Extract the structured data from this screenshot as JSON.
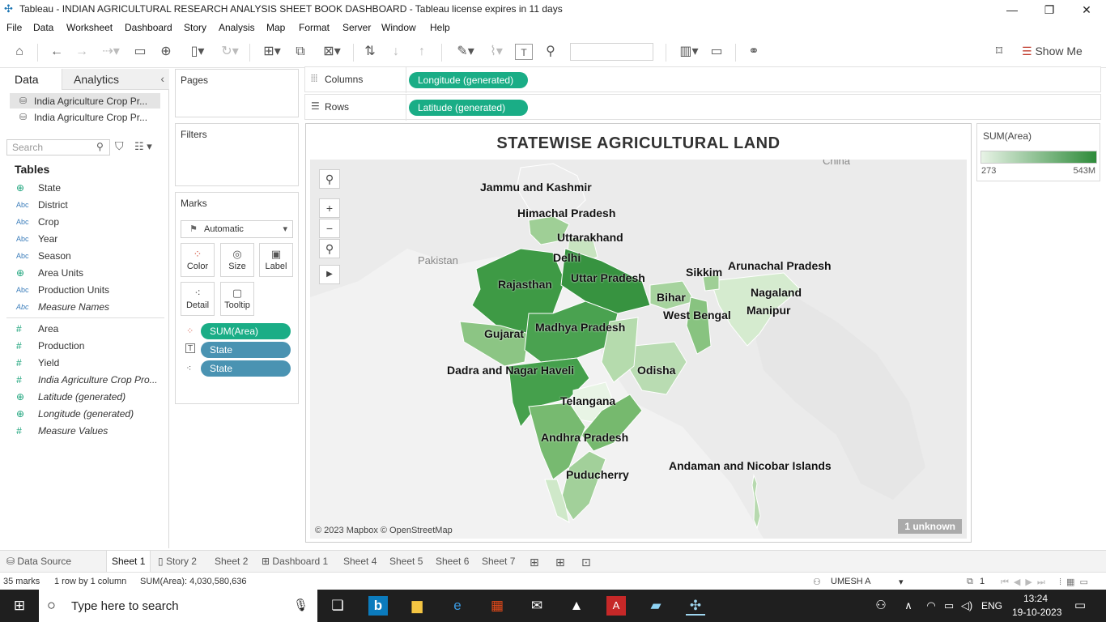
{
  "window": {
    "title": "Tableau - INDIAN AGRICULTURAL RESEARCH ANALYSIS SHEET BOOK DASHBOARD - Tableau license expires in 11 days"
  },
  "menu": [
    "File",
    "Data",
    "Worksheet",
    "Dashboard",
    "Story",
    "Analysis",
    "Map",
    "Format",
    "Server",
    "Window",
    "Help"
  ],
  "toolbar": {
    "show_me": "Show Me"
  },
  "left_pane": {
    "tabs": [
      "Data",
      "Analytics"
    ],
    "data_sources": [
      "India Agriculture Crop Pr...",
      "India Agriculture Crop Pr..."
    ],
    "search_placeholder": "Search",
    "tables_heading": "Tables",
    "fields": [
      {
        "icon": "globe",
        "type": "",
        "name": "State"
      },
      {
        "icon": "abc",
        "type": "Abc",
        "name": "District"
      },
      {
        "icon": "abc",
        "type": "Abc",
        "name": "Crop"
      },
      {
        "icon": "abc",
        "type": "Abc",
        "name": "Year"
      },
      {
        "icon": "abc",
        "type": "Abc",
        "name": "Season"
      },
      {
        "icon": "globe",
        "type": "",
        "name": "Area Units"
      },
      {
        "icon": "abc",
        "type": "Abc",
        "name": "Production Units"
      },
      {
        "icon": "abc",
        "type": "Abc",
        "name": "Measure Names"
      }
    ],
    "measures": [
      {
        "icon": "hash",
        "type": "#",
        "name": "Area"
      },
      {
        "icon": "hash",
        "type": "#",
        "name": "Production"
      },
      {
        "icon": "hash",
        "type": "#",
        "name": "Yield"
      },
      {
        "icon": "hash",
        "type": "#",
        "name": "India Agriculture Crop Pro..."
      },
      {
        "icon": "globe",
        "type": "",
        "name": "Latitude (generated)"
      },
      {
        "icon": "globe",
        "type": "",
        "name": "Longitude (generated)"
      },
      {
        "icon": "hash",
        "type": "#",
        "name": "Measure Values"
      }
    ]
  },
  "cards": {
    "pages": "Pages",
    "filters": "Filters",
    "marks": "Marks",
    "mark_type": "Automatic",
    "mark_buttons": [
      "Color",
      "Size",
      "Label",
      "Detail",
      "Tooltip"
    ],
    "mark_pills": [
      "SUM(Area)",
      "State",
      "State"
    ]
  },
  "shelves": {
    "columns_label": "Columns",
    "columns_pill": "Longitude (generated)",
    "rows_label": "Rows",
    "rows_pill": "Latitude (generated)"
  },
  "viz": {
    "title": "STATEWISE AGRICULTURAL LAND",
    "countries": [
      "Pakistan",
      "China"
    ],
    "states": [
      "Jammu and Kashmir",
      "Himachal Pradesh",
      "Uttarakhand",
      "Delhi",
      "Rajasthan",
      "Uttar Pradesh",
      "Sikkim",
      "Arunachal Pradesh",
      "Nagaland",
      "Bihar",
      "Manipur",
      "West Bengal",
      "Gujarat",
      "Madhya Pradesh",
      "Dadra and Nagar Haveli",
      "Odisha",
      "Telangana",
      "Andhra Pradesh",
      "Puducherry",
      "Andaman and Nicobar Islands"
    ],
    "copyright": "© 2023 Mapbox © OpenStreetMap",
    "unknown_badge": "1 unknown"
  },
  "legend": {
    "title": "SUM(Area)",
    "min": "273",
    "max": "543M",
    "color_low": "#e8f3e6",
    "color_high": "#2e8b3a"
  },
  "sheet_tabs": [
    "Data Source",
    "Sheet 1",
    "Story 2",
    "Sheet 2",
    "Dashboard 1",
    "Sheet 4",
    "Sheet 5",
    "Sheet 6",
    "Sheet 7"
  ],
  "status": {
    "marks": "35 marks",
    "rows": "1 row by 1 column",
    "sum": "SUM(Area): 4,030,580,636",
    "user": "UMESH A",
    "count": "1"
  },
  "taskbar": {
    "search_placeholder": "Type here to search",
    "lang": "ENG",
    "time": "13:24",
    "date": "19-10-2023"
  }
}
